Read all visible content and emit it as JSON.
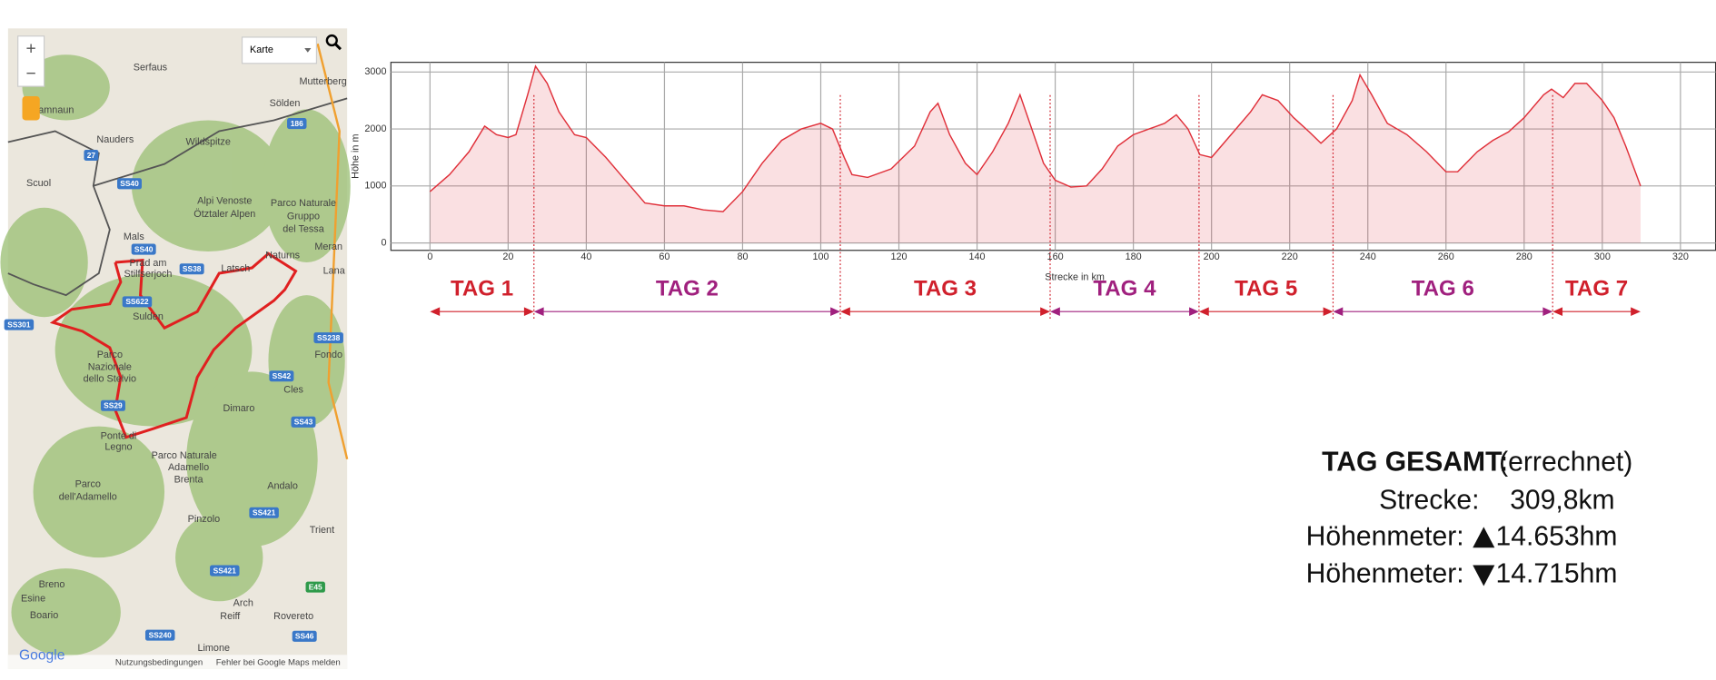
{
  "map": {
    "control": "Karte",
    "labels": [
      "Serfaus",
      "Sölden",
      "Mutterberg",
      "Samnaun",
      "Nauders",
      "Wildspitze",
      "Scuol",
      "Alpi Venoste",
      "Ötztaler Alpen",
      "Parco Naturale",
      "Gruppo",
      "del Tessa",
      "Mals",
      "Meran",
      "Prad am",
      "Stilfserjoch",
      "Latsch",
      "Naturns",
      "Lana",
      "Sulden",
      "Parco",
      "Nazionale",
      "dello Stelvio",
      "Fondo",
      "Cles",
      "Dimaro",
      "Ponte di",
      "Legno",
      "Parco Naturale",
      "Adamello",
      "Brenta",
      "Andalo",
      "Parco",
      "dell'Adamello",
      "Pinzolo",
      "Trient",
      "Breno",
      "Esine",
      "Boario",
      "Arch",
      "Reiff",
      "Rovereto",
      "Limone"
    ],
    "shields": [
      "SS40",
      "SS40",
      "SS38",
      "SS622",
      "SS301",
      "SS238",
      "SS42",
      "SS43",
      "SS29",
      "SS421",
      "SS421",
      "SS240",
      "SS46",
      "E45",
      "186",
      "27"
    ],
    "footer": [
      "Nutzungsbedingungen",
      "Fehler bei Google Maps melden"
    ],
    "logo": "Google"
  },
  "chart_data": {
    "type": "area",
    "xlabel": "Strecke in km",
    "ylabel": "Höhe in m",
    "color": "#e0303a",
    "x": [
      0,
      5,
      10,
      14,
      17,
      20,
      22,
      25,
      27,
      30,
      33,
      37,
      40,
      45,
      50,
      55,
      60,
      65,
      70,
      75,
      80,
      85,
      90,
      95,
      100,
      103,
      106,
      108,
      112,
      118,
      124,
      128,
      130,
      133,
      137,
      140,
      144,
      148,
      151,
      154,
      157,
      160,
      164,
      168,
      172,
      176,
      180,
      184,
      188,
      191,
      194,
      197,
      200,
      205,
      210,
      213,
      217,
      221,
      225,
      228,
      232,
      236,
      238,
      241,
      245,
      250,
      255,
      260,
      263,
      268,
      272,
      276,
      280,
      285,
      287,
      290,
      293,
      296,
      300,
      303,
      306,
      309.8
    ],
    "values": [
      900,
      1200,
      1600,
      2050,
      1900,
      1850,
      1900,
      2600,
      3100,
      2800,
      2300,
      1900,
      1850,
      1500,
      1100,
      700,
      650,
      650,
      580,
      550,
      900,
      1400,
      1800,
      2000,
      2100,
      2000,
      1500,
      1200,
      1150,
      1300,
      1700,
      2300,
      2450,
      1900,
      1400,
      1200,
      1600,
      2100,
      2600,
      2000,
      1400,
      1100,
      980,
      1000,
      1300,
      1700,
      1900,
      2000,
      2100,
      2250,
      2000,
      1550,
      1500,
      1900,
      2300,
      2600,
      2500,
      2200,
      1950,
      1750,
      2000,
      2500,
      2950,
      2600,
      2100,
      1900,
      1600,
      1250,
      1250,
      1600,
      1800,
      1950,
      2200,
      2600,
      2700,
      2550,
      2800,
      2800,
      2500,
      2200,
      1700,
      1000
    ],
    "xlim": [
      -10,
      329
    ],
    "ylim": [
      -130,
      3170
    ],
    "xticks": [
      0,
      20,
      40,
      60,
      80,
      100,
      120,
      140,
      160,
      180,
      200,
      220,
      240,
      260,
      280,
      300,
      320
    ],
    "yticks": [
      0,
      1000,
      2000,
      3000
    ],
    "grid": true,
    "days": [
      {
        "label": "TAG 1",
        "start": 0,
        "end": 26.6,
        "color": "#d0202c"
      },
      {
        "label": "TAG 2",
        "start": 26.6,
        "end": 105,
        "color": "#a0207e"
      },
      {
        "label": "TAG 3",
        "start": 105,
        "end": 158.7,
        "color": "#d0202c"
      },
      {
        "label": "TAG 4",
        "start": 158.7,
        "end": 196.8,
        "color": "#a0207e"
      },
      {
        "label": "TAG 5",
        "start": 196.8,
        "end": 231.1,
        "color": "#d0202c"
      },
      {
        "label": "TAG 6",
        "start": 231.1,
        "end": 287.3,
        "color": "#a0207e"
      },
      {
        "label": "TAG 7",
        "start": 287.3,
        "end": 309.8,
        "color": "#d0202c"
      }
    ]
  },
  "summary": {
    "title": "TAG GESAMT:",
    "note": "(errechnet)",
    "rows": [
      {
        "label": "Strecke:",
        "value": "309,8km"
      },
      {
        "label": "Höhenmeter:",
        "value": "14.653hm"
      },
      {
        "label": "Höhenmeter:",
        "value": "14.715hm"
      }
    ]
  }
}
